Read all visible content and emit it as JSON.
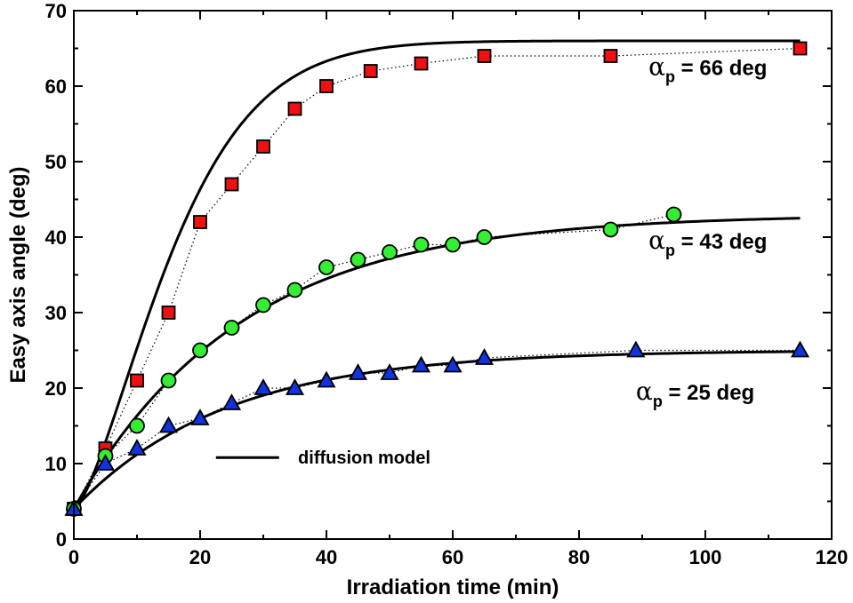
{
  "chart_data": {
    "type": "scatter",
    "title": "",
    "xlabel": "Irradiation time (min)",
    "ylabel": "Easy axis angle (deg)",
    "xlim": [
      0,
      120
    ],
    "ylim": [
      0,
      70
    ],
    "xticks": [
      0,
      20,
      40,
      60,
      80,
      100,
      120
    ],
    "yticks": [
      0,
      10,
      20,
      30,
      40,
      50,
      60,
      70
    ],
    "grid": false,
    "legend": {
      "label": "diffusion model",
      "placement": "bottom-center"
    },
    "series": [
      {
        "name": "alpha_p = 66 deg",
        "marker": "square",
        "color": "#ee1111",
        "x": [
          0,
          5,
          10,
          15,
          20,
          25,
          30,
          35,
          40,
          47,
          55,
          65,
          85,
          115
        ],
        "y": [
          4,
          12,
          21,
          30,
          42,
          47,
          52,
          57,
          60,
          62,
          63,
          64,
          64,
          65
        ],
        "model_plateau": 66
      },
      {
        "name": "alpha_p = 43 deg",
        "marker": "circle",
        "color": "#33ee33",
        "x": [
          0,
          5,
          10,
          15,
          20,
          25,
          30,
          35,
          40,
          45,
          50,
          55,
          60,
          65,
          85,
          95
        ],
        "y": [
          4,
          11,
          15,
          21,
          25,
          28,
          31,
          33,
          36,
          37,
          38,
          39,
          39,
          40,
          41,
          43
        ],
        "model_plateau": 43
      },
      {
        "name": "alpha_p = 25 deg",
        "marker": "triangle",
        "color": "#1133dd",
        "x": [
          0,
          5,
          10,
          15,
          20,
          25,
          30,
          35,
          40,
          45,
          50,
          55,
          60,
          65,
          89,
          115
        ],
        "y": [
          4,
          10,
          12,
          15,
          16,
          18,
          20,
          20,
          21,
          22,
          22,
          23,
          23,
          24,
          25,
          25
        ],
        "model_plateau": 25
      }
    ],
    "annotations": [
      {
        "greek": "α",
        "sub": "p",
        "rest": " = 66 deg",
        "x": 91,
        "y": 61.5
      },
      {
        "greek": "α",
        "sub": "p",
        "rest": " = 43 deg",
        "x": 91,
        "y": 38.5
      },
      {
        "greek": "α",
        "sub": "p",
        "rest": " = 25 deg",
        "x": 89,
        "y": 18.5
      }
    ]
  }
}
